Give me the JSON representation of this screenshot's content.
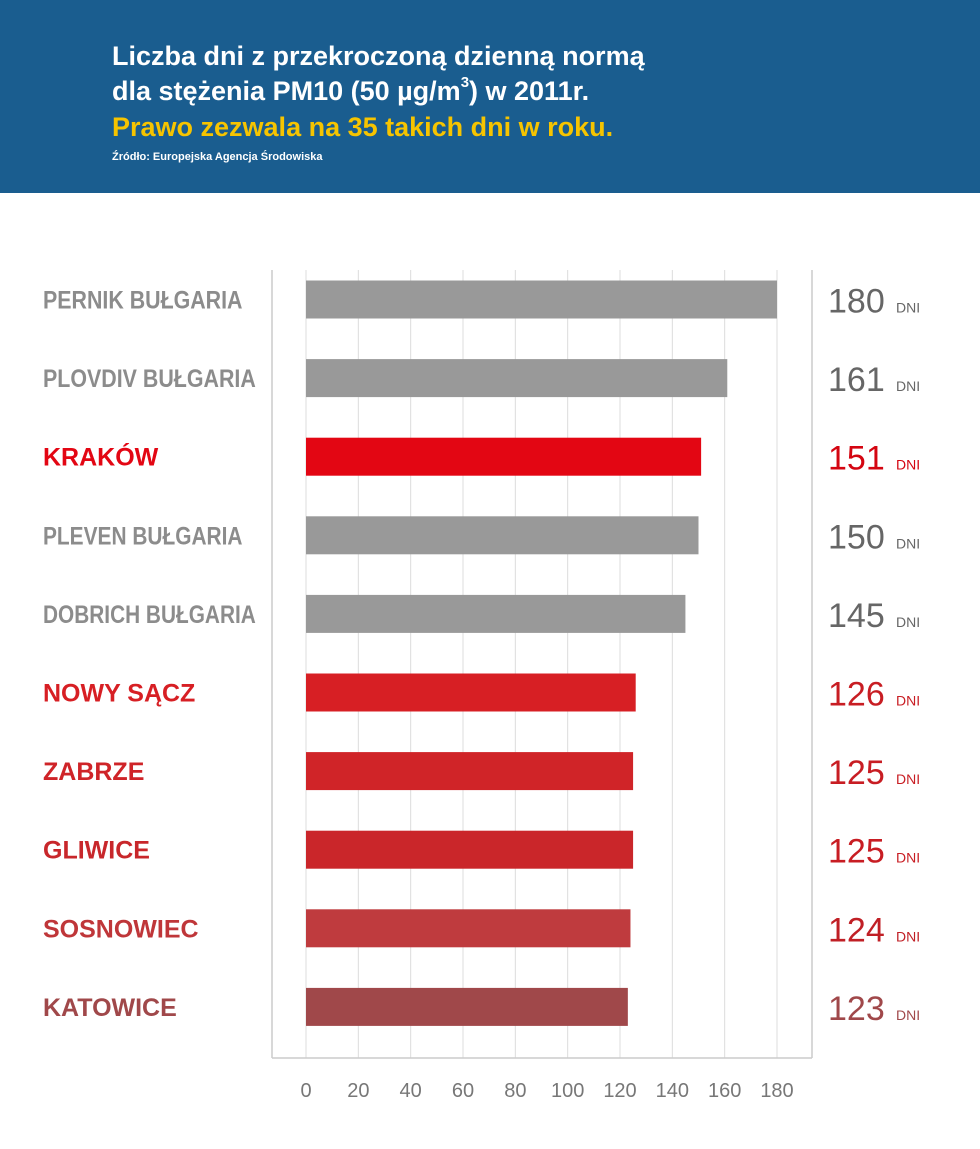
{
  "header": {
    "title_line1": "Liczba dni z przekroczoną dzienną normą",
    "title_line2_pre": "dla stężenia PM10 (50 µg/m",
    "title_line2_sup": "3",
    "title_line2_post": ") w 2011r.",
    "subtitle": "Prawo zezwala na 35 takich dni w roku.",
    "source": "Źródło: Europejska Agencja Środowiska"
  },
  "chart_data": {
    "type": "bar",
    "orientation": "horizontal",
    "title": "Liczba dni z przekroczoną dzienną normą dla stężenia PM10 (50 µg/m3) w 2011r.",
    "categories": [
      "PERNIK BUŁGARIA",
      "PLOVDIV BUŁGARIA",
      "KRAKÓW",
      "PLEVEN BUŁGARIA",
      "DOBRICH BUŁGARIA",
      "NOWY SĄCZ",
      "ZABRZE",
      "GLIWICE",
      "SOSNOWIEC",
      "KATOWICE"
    ],
    "values": [
      180,
      161,
      151,
      150,
      145,
      126,
      125,
      125,
      124,
      123
    ],
    "value_unit": "DNI",
    "value_labels": [
      "180",
      "161",
      "151",
      "150",
      "145",
      "126",
      "125",
      "125",
      "124",
      "123"
    ],
    "x_ticks": [
      "0",
      "20",
      "40",
      "60",
      "80",
      "100",
      "120",
      "140",
      "160",
      "180"
    ],
    "xlim": [
      0,
      180
    ],
    "grid": "vertical",
    "legend": "none",
    "colors": [
      "#999999",
      "#999999",
      "#e30613",
      "#999999",
      "#999999",
      "#d71f24",
      "#d02428",
      "#ca262a",
      "#bf3b3e",
      "#a0484a"
    ],
    "label_colors": [
      "#8c8c8c",
      "#8c8c8c",
      "#e30613",
      "#8c8c8c",
      "#8c8c8c",
      "#d71f24",
      "#cf2428",
      "#c8272b",
      "#bf3639",
      "#a0484a"
    ],
    "value_colors": [
      "#666666",
      "#666666",
      "#d40511",
      "#666666",
      "#666666",
      "#c81d23",
      "#c81d23",
      "#c81d23",
      "#c01f25",
      "#a0484a"
    ]
  }
}
